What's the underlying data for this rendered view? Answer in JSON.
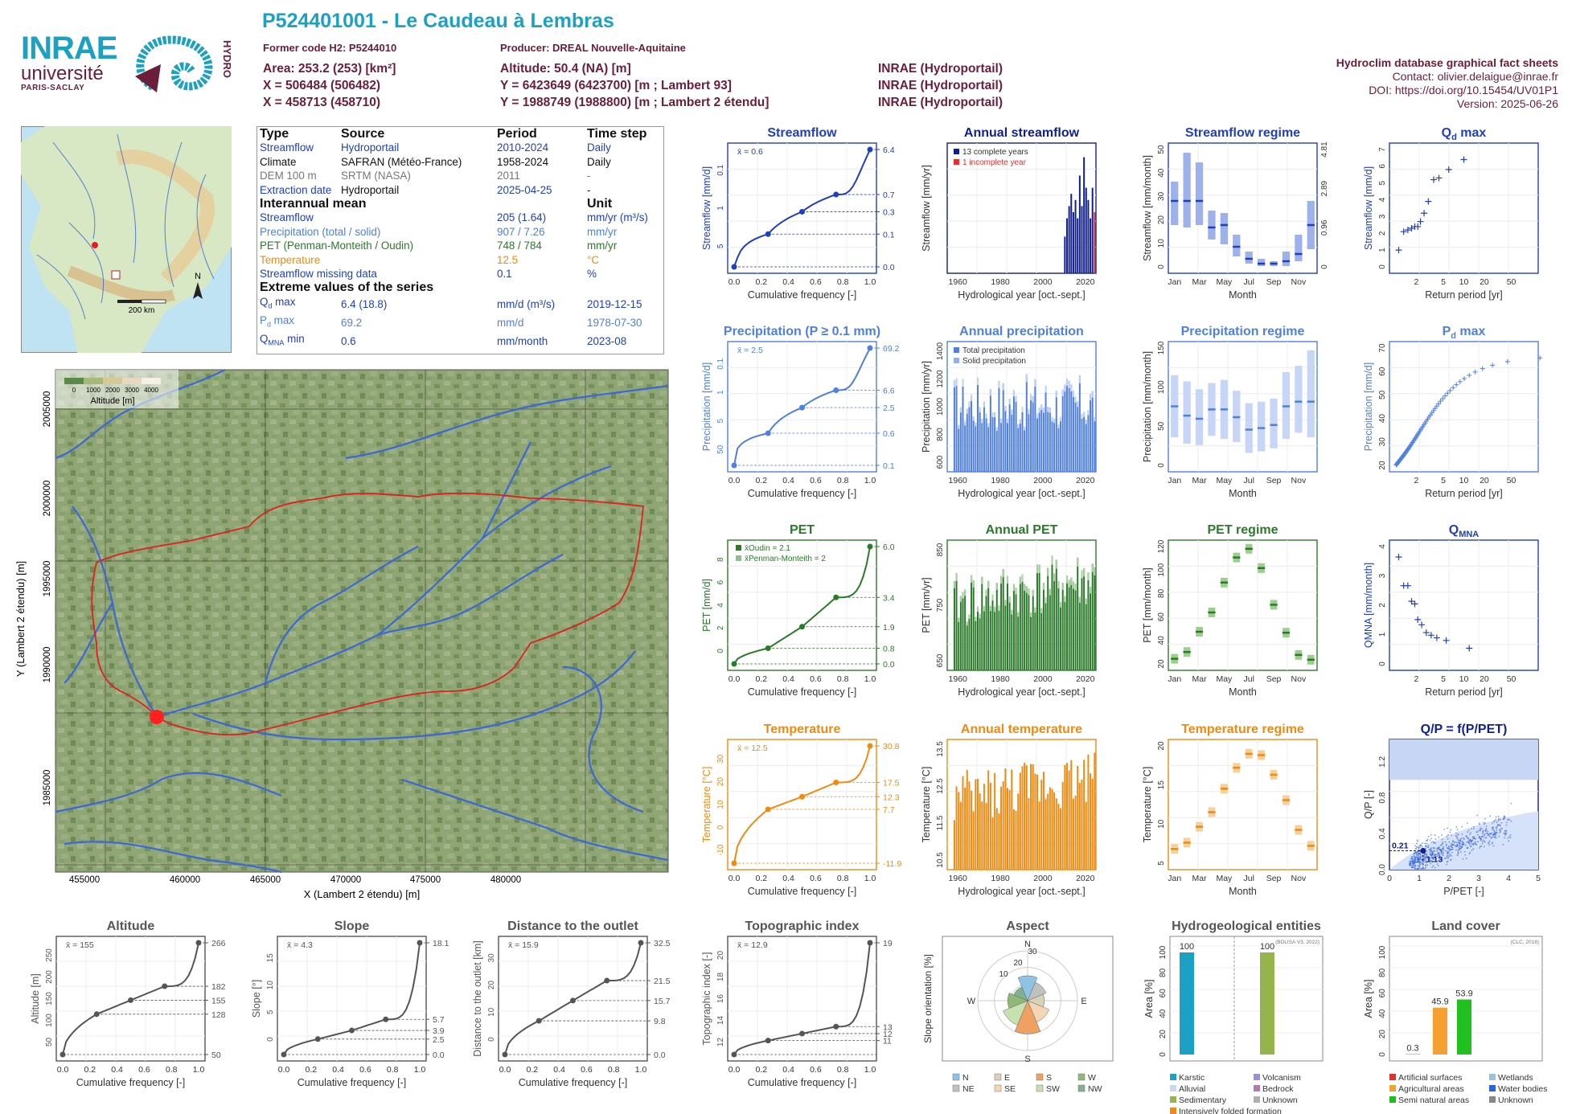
{
  "header": {
    "title": "P524401001 - Le Caudeau à Lembras",
    "former_code": "Former code H2: P5244010",
    "producer": "Producer: DREAL Nouvelle-Aquitaine",
    "area": "Area: 253.2 (253) [km²]",
    "x93": "X = 506484 (506482)",
    "x2e": "X = 458713 (458710)",
    "altitude": "Altitude: 50.4 (NA) [m]",
    "y93": "Y = 6423649 (6423700) [m ; Lambert 93]",
    "y2e": "Y = 1988749 (1988800) [m ; Lambert 2 étendu]",
    "src1": "INRAE (Hydroportail)",
    "src2": "INRAE (Hydroportail)",
    "src3": "INRAE (Hydroportail)",
    "db_title": "Hydroclim database graphical fact sheets",
    "contact": "Contact: olivier.delaigue@inrae.fr",
    "doi": "DOI: https://doi.org/10.15454/UV01P1",
    "version": "Version: 2025-06-26"
  },
  "logos": {
    "inrae": "INRAE",
    "universite": "université",
    "paris_saclay": "PARIS-SACLAY",
    "hydro": "HYDRO"
  },
  "map_inset": {
    "north": "N",
    "scale": "200 km"
  },
  "info_table": {
    "headers": [
      "Type",
      "Source",
      "Period",
      "Time step"
    ],
    "rows": [
      {
        "type": "Streamflow",
        "source": "Hydroportail",
        "period": "2010-2024",
        "step": "Daily",
        "color": "#1f3fbf"
      },
      {
        "type": "Climate",
        "source": "SAFRAN (Météo-France)",
        "period": "1958-2024",
        "step": "Daily",
        "color": "#111111"
      },
      {
        "type": "DEM 100 m",
        "source": "SRTM (NASA)",
        "period": "2011",
        "step": "-",
        "color": "#777777"
      },
      {
        "type": "Extraction date",
        "source": "Hydroportail",
        "period": "2025-04-25",
        "step": "-",
        "color": "#1f3fbf"
      }
    ],
    "mean_title": "Interannual mean",
    "unit_title": "Unit",
    "means": [
      {
        "label": "Streamflow",
        "value": "205 (1.64)",
        "unit": "mm/yr (m³/s)",
        "color": "#1f3fbf"
      },
      {
        "label": "Precipitation (total / solid)",
        "value": "907 / 7.26",
        "unit": "mm/yr",
        "color": "#4f7fe0"
      },
      {
        "label": "PET (Penman-Monteith / Oudin)",
        "value": "748 / 784",
        "unit": "mm/yr",
        "color": "#2a7a2a"
      },
      {
        "label": "Temperature",
        "value": "12.5",
        "unit": "°C",
        "color": "#f08a10"
      },
      {
        "label": "Streamflow missing data",
        "value": "0.1",
        "unit": "%",
        "color": "#1f3fbf"
      }
    ],
    "extreme_title": "Extreme values of the series",
    "extremes": [
      {
        "label": "Q",
        "sub": "d",
        "suffix": " max",
        "value": "6.4 (18.8)",
        "unit": "mm/d (m³/s)",
        "date": "2019-12-15",
        "color": "#1f3fbf"
      },
      {
        "label": "P",
        "sub": "d",
        "suffix": " max",
        "value": "69.2",
        "unit": "mm/d",
        "date": "1978-07-30",
        "color": "#4f7fe0"
      },
      {
        "label": "Q",
        "sub": "MNA",
        "suffix": " min",
        "value": "0.6",
        "unit": "mm/month",
        "date": "2023-08",
        "color": "#1f3fbf"
      }
    ]
  },
  "main_map": {
    "legend_title": "Altitude [m]",
    "legend_ticks": [
      "0",
      "1000",
      "2000",
      "3000",
      "4000"
    ],
    "xlabel": "X (Lambert 2 étendu) [m]",
    "ylabel": "Y (Lambert 2 étendu) [m]",
    "xticks": [
      "455000",
      "460000",
      "465000",
      "470000",
      "475000",
      "480000"
    ],
    "yticks": [
      "2005000",
      "2000000",
      "1995000",
      "1990000",
      "1985000"
    ]
  },
  "colors": {
    "streamflow": "#1f3fbf",
    "precip": "#4f7fe0",
    "pet": "#2a7a2a",
    "temp": "#f08a10",
    "topo": "#555555",
    "title_dark": "#0f1f8f"
  },
  "chart_data": [
    {
      "id": "streamflow_cdf",
      "type": "line",
      "title": "Streamflow",
      "xlabel": "Cumulative frequency [-]",
      "ylabel": "Streamflow [mm/d]",
      "mean": "x̄ = 0.6",
      "x": [
        0,
        0.25,
        0.5,
        0.75,
        1
      ],
      "y": [
        0.0,
        0.1,
        0.3,
        0.7,
        6.4
      ],
      "right_ticks": [
        "6.4",
        "0.7",
        "0.3",
        "0.1",
        "0.0"
      ],
      "left_ticks": [
        "5",
        "1",
        "0.1"
      ]
    },
    {
      "id": "annual_streamflow",
      "type": "bar",
      "title": "Annual streamflow",
      "xlabel": "Hydrological year [oct.-sept.]",
      "ylabel": "Streamflow [mm/yr]",
      "legend": [
        "13 complete years",
        "1 incomplete year"
      ],
      "xticks": [
        "1960",
        "1980",
        "2000",
        "2020"
      ],
      "x": [
        2010,
        2011,
        2012,
        2013,
        2014,
        2015,
        2016,
        2017,
        2018,
        2019,
        2020,
        2021,
        2022,
        2023,
        2024
      ],
      "y": [
        0.3,
        0.45,
        0.55,
        0.65,
        0.5,
        0.6,
        0.45,
        0.8,
        0.55,
        0.95,
        0.7,
        0.6,
        0.45,
        0.7,
        0.5
      ]
    },
    {
      "id": "streamflow_regime",
      "type": "bar",
      "title": "Streamflow regime",
      "xlabel": "Month",
      "ylabel": "Streamflow [mm/month]",
      "categories": [
        "Jan",
        "Feb",
        "Mar",
        "Apr",
        "May",
        "Jun",
        "Jul",
        "Aug",
        "Sep",
        "Oct",
        "Nov",
        "Dec"
      ],
      "xticks": [
        "Jan",
        "Mar",
        "May",
        "Jul",
        "Sep",
        "Nov"
      ],
      "median": [
        28,
        28,
        28,
        17,
        18,
        9,
        4,
        2,
        2,
        3,
        6,
        18
      ],
      "q10": [
        18,
        17,
        18,
        12,
        10,
        5,
        2,
        1,
        1,
        1,
        3,
        8
      ],
      "q90": [
        36,
        48,
        44,
        24,
        23,
        14,
        7,
        4,
        3,
        7,
        14,
        28
      ],
      "left_ticks": [
        "0",
        "10",
        "20",
        "30",
        "40",
        "50"
      ],
      "right_ticks": [
        "0",
        "0.96",
        "2.89",
        "4.81"
      ]
    },
    {
      "id": "qd_max",
      "type": "scatter",
      "title": "Qd max",
      "xlabel": "Return period [yr]",
      "ylabel": "Streamflow [mm/d]",
      "x": [
        1.1,
        1.3,
        1.5,
        1.7,
        1.9,
        2.1,
        2.3,
        2.6,
        3.0,
        3.6,
        4.3,
        6,
        10
      ],
      "y": [
        1.0,
        2.1,
        2.2,
        2.3,
        2.4,
        2.4,
        2.7,
        3.2,
        3.9,
        5.2,
        5.3,
        5.8,
        6.4
      ],
      "xticks": [
        "2",
        "5",
        "10",
        "20",
        "50"
      ],
      "yticks": [
        "0",
        "1",
        "2",
        "3",
        "4",
        "5",
        "6",
        "7"
      ]
    },
    {
      "id": "precip_cdf",
      "type": "line",
      "title": "Precipitation (P ≥ 0.1 mm)",
      "xlabel": "Cumulative frequency [-]",
      "ylabel": "Precipitation [mm/d]",
      "mean": "x̄ = 2.5",
      "x": [
        0,
        0.25,
        0.5,
        0.75,
        1
      ],
      "y": [
        0.1,
        0.6,
        2.5,
        6.6,
        69.2
      ],
      "right_ticks": [
        "69.2",
        "6.6",
        "2.5",
        "0.6",
        "0.1"
      ],
      "left_ticks": [
        "50",
        "5",
        "1",
        "0.1"
      ]
    },
    {
      "id": "annual_precip",
      "type": "bar",
      "title": "Annual precipitation",
      "xlabel": "Hydrological year [oct.-sept.]",
      "ylabel": "Precipitation [mm/yr]",
      "legend": [
        "Total precipitation",
        "Solid precipitation"
      ],
      "xticks": [
        "1960",
        "1980",
        "2000",
        "2020"
      ],
      "yticks": [
        "600",
        "800",
        "1000",
        "1200",
        "1400"
      ],
      "range": [
        1958,
        2024
      ]
    },
    {
      "id": "precip_regime",
      "type": "bar",
      "title": "Precipitation regime",
      "xlabel": "Month",
      "ylabel": "Precipitation [mm/month]",
      "categories": [
        "Jan",
        "Feb",
        "Mar",
        "Apr",
        "May",
        "Jun",
        "Jul",
        "Aug",
        "Sep",
        "Oct",
        "Nov",
        "Dec"
      ],
      "xticks": [
        "Jan",
        "Mar",
        "May",
        "Jul",
        "Sep",
        "Nov"
      ],
      "median": [
        78,
        66,
        62,
        74,
        74,
        64,
        48,
        50,
        54,
        78,
        84,
        84
      ],
      "q10": [
        38,
        30,
        28,
        40,
        36,
        32,
        18,
        20,
        24,
        36,
        44,
        38
      ],
      "q90": [
        118,
        110,
        100,
        108,
        112,
        98,
        82,
        84,
        88,
        122,
        130,
        150
      ],
      "yticks": [
        "0",
        "50",
        "100",
        "150"
      ]
    },
    {
      "id": "pd_max",
      "type": "scatter",
      "title": "Pd max",
      "xlabel": "Return period [yr]",
      "ylabel": "Precipitation [mm/d]",
      "xticks": [
        "2",
        "5",
        "10",
        "20",
        "50"
      ],
      "yticks": [
        "20",
        "30",
        "40",
        "50",
        "60",
        "70"
      ],
      "ymin": 20,
      "ymax": 69,
      "n": 66
    },
    {
      "id": "pet_cdf",
      "type": "line",
      "title": "PET",
      "xlabel": "Cumulative frequency [-]",
      "ylabel": "PET [mm/d]",
      "legend": [
        "x̄Oudin = 2.1",
        "x̄Penman-Monteith = 2"
      ],
      "x": [
        0,
        0.25,
        0.5,
        0.75,
        1
      ],
      "y": [
        0.0,
        0.8,
        1.9,
        3.4,
        6.0
      ],
      "right_ticks": [
        "6.0",
        "3.4",
        "1.9",
        "0.8",
        "0.0"
      ],
      "left_ticks": [
        "0",
        "2",
        "4",
        "6",
        "8"
      ]
    },
    {
      "id": "annual_pet",
      "type": "bar",
      "title": "Annual PET",
      "xlabel": "Hydrological year [oct.-sept.]",
      "ylabel": "PET [mm/yr]",
      "xticks": [
        "1960",
        "1980",
        "2000",
        "2020"
      ],
      "yticks": [
        "650",
        "750",
        "850"
      ],
      "range": [
        1958,
        2024
      ]
    },
    {
      "id": "pet_regime",
      "type": "bar",
      "title": "PET regime",
      "xlabel": "Month",
      "ylabel": "PET [mm/month]",
      "categories": [
        "Jan",
        "Feb",
        "Mar",
        "Apr",
        "May",
        "Jun",
        "Jul",
        "Aug",
        "Sep",
        "Oct",
        "Nov",
        "Dec"
      ],
      "xticks": [
        "Jan",
        "Mar",
        "May",
        "Jul",
        "Sep",
        "Nov"
      ],
      "median": [
        17,
        24,
        45,
        65,
        96,
        122,
        131,
        111,
        73,
        44,
        21,
        16
      ],
      "yticks": [
        "20",
        "40",
        "60",
        "80",
        "100",
        "120"
      ]
    },
    {
      "id": "qmna",
      "type": "scatter",
      "title": "QMNA",
      "xlabel": "Return period [yr]",
      "ylabel": "QMNA [mm/month]",
      "x": [
        1.1,
        1.3,
        1.5,
        1.7,
        1.9,
        2.1,
        2.4,
        2.8,
        3.3,
        4,
        5.5,
        12
      ],
      "y": [
        4.1,
        3.0,
        3.0,
        2.4,
        2.3,
        1.7,
        1.5,
        1.2,
        1.1,
        1.0,
        0.9,
        0.6
      ],
      "xticks": [
        "2",
        "5",
        "10",
        "20",
        "50"
      ],
      "yticks": [
        "0",
        "1",
        "2",
        "3",
        "4"
      ]
    },
    {
      "id": "temp_cdf",
      "type": "line",
      "title": "Temperature",
      "xlabel": "Cumulative frequency [-]",
      "ylabel": "Temperature [°C]",
      "mean": "x̄ = 12.5",
      "x": [
        0,
        0.25,
        0.5,
        0.75,
        1
      ],
      "y": [
        -11.9,
        7.7,
        12.3,
        17.5,
        30.8
      ],
      "right_ticks": [
        "30.8",
        "17.5",
        "12.3",
        "7.7",
        "-11.9"
      ],
      "left_ticks": [
        "-10",
        "0",
        "10",
        "20",
        "30"
      ]
    },
    {
      "id": "annual_temp",
      "type": "bar",
      "title": "Annual temperature",
      "xlabel": "Hydrological year [oct.-sept.]",
      "ylabel": "Temperature [°C]",
      "xticks": [
        "1960",
        "1980",
        "2000",
        "2020"
      ],
      "yticks": [
        "10.5",
        "11.5",
        "12.5",
        "13.5"
      ],
      "range": [
        1958,
        2024
      ]
    },
    {
      "id": "temp_regime",
      "type": "bar",
      "title": "Temperature regime",
      "xlabel": "Month",
      "ylabel": "Temperature [°C]",
      "categories": [
        "Jan",
        "Feb",
        "Mar",
        "Apr",
        "May",
        "Jun",
        "Jul",
        "Aug",
        "Sep",
        "Oct",
        "Nov",
        "Dec"
      ],
      "xticks": [
        "Jan",
        "Mar",
        "May",
        "Jul",
        "Sep",
        "Nov"
      ],
      "median": [
        5.5,
        6.5,
        9,
        11.3,
        15,
        18.3,
        20.5,
        20.3,
        17.2,
        13.2,
        8.5,
        6
      ],
      "yticks": [
        "5",
        "10",
        "15",
        "20"
      ]
    },
    {
      "id": "qp_ppet",
      "type": "scatter",
      "title": "Q/P = f(P/PET)",
      "xlabel": "P/PET [-]",
      "ylabel": "Q/P [-]",
      "annotations": [
        "0.21",
        "1.13"
      ],
      "xticks": [
        "0",
        "1",
        "2",
        "3",
        "4",
        "5"
      ],
      "yticks": [
        "0.0",
        "0.4",
        "0.8",
        "1.2"
      ]
    },
    {
      "id": "altitude_cdf",
      "type": "line",
      "title": "Altitude",
      "xlabel": "Cumulative frequency [-]",
      "ylabel": "Altitude [m]",
      "mean": "x̄ = 155",
      "x": [
        0,
        0.25,
        0.5,
        0.75,
        1
      ],
      "y": [
        50,
        128,
        155,
        182,
        266
      ],
      "right_ticks": [
        "266",
        "182",
        "155",
        "128",
        "50"
      ],
      "left_ticks": [
        "50",
        "100",
        "150",
        "200",
        "250"
      ]
    },
    {
      "id": "slope_cdf",
      "type": "line",
      "title": "Slope",
      "xlabel": "Cumulative frequency [-]",
      "ylabel": "Slope [°]",
      "mean": "x̄ = 4.3",
      "x": [
        0,
        0.25,
        0.5,
        0.75,
        1
      ],
      "y": [
        0.0,
        2.5,
        3.9,
        5.7,
        18.1
      ],
      "right_ticks": [
        "18.1",
        "5.7",
        "3.9",
        "2.5",
        "0.0"
      ],
      "left_ticks": [
        "0",
        "5",
        "10",
        "15"
      ]
    },
    {
      "id": "distance_cdf",
      "type": "line",
      "title": "Distance to the outlet",
      "xlabel": "Cumulative frequency [-]",
      "ylabel": "Distance to the outlet [km]",
      "mean": "x̄ = 15.9",
      "x": [
        0,
        0.25,
        0.5,
        0.75,
        1
      ],
      "y": [
        0.0,
        9.8,
        15.7,
        21.5,
        32.5
      ],
      "right_ticks": [
        "32.5",
        "21.5",
        "15.7",
        "9.8",
        "0.0"
      ],
      "left_ticks": [
        "0",
        "10",
        "20",
        "30"
      ]
    },
    {
      "id": "topo_cdf",
      "type": "line",
      "title": "Topographic index",
      "xlabel": "Cumulative frequency [-]",
      "ylabel": "Topographic index [-]",
      "mean": "x̄ = 12.9",
      "x": [
        0,
        0.25,
        0.5,
        0.75,
        1
      ],
      "y": [
        11,
        12,
        12.5,
        13,
        19
      ],
      "right_ticks": [
        "19",
        "13",
        "12",
        "11"
      ],
      "left_ticks": [
        "12",
        "14",
        "16",
        "18",
        "20"
      ]
    },
    {
      "id": "aspect",
      "type": "pie",
      "title": "Aspect",
      "ylabel": "Slope orientation [%]",
      "directions": [
        "N",
        "NE",
        "E",
        "SE",
        "S",
        "SW",
        "W",
        "NW"
      ],
      "values": [
        15,
        12,
        10,
        14,
        20,
        16,
        12,
        9
      ],
      "colors": [
        "#8fc3e6",
        "#c0c0c0",
        "#d9d2b8",
        "#f4d6b7",
        "#f0a060",
        "#c8e0b0",
        "#90b878",
        "#80b090"
      ],
      "rings": [
        "10",
        "20",
        "30"
      ],
      "compass": [
        "N",
        "E",
        "S",
        "W"
      ]
    },
    {
      "id": "hydrogeology",
      "type": "bar",
      "title": "Hydrogeological entities",
      "ylabel": "Area [%]",
      "note": "(BDLISA V3, 2022)",
      "values": [
        100,
        100
      ],
      "bar_labels": [
        "100",
        "100"
      ],
      "bar_colors": [
        "#1aa1c3",
        "#95b44c"
      ],
      "legend": [
        {
          "label": "Karstic",
          "color": "#1aa1c3"
        },
        {
          "label": "Volcanism",
          "color": "#9b8fd6"
        },
        {
          "label": "Alluvial",
          "color": "#c8d8f0"
        },
        {
          "label": "Bedrock",
          "color": "#b07ab0"
        },
        {
          "label": "Sedimentary",
          "color": "#95b44c"
        },
        {
          "label": "Unknown",
          "color": "#b0b0b0"
        },
        {
          "label": "Intensively folded formation",
          "color": "#f08a10"
        }
      ],
      "yticks": [
        "0",
        "20",
        "40",
        "60",
        "80",
        "100"
      ]
    },
    {
      "id": "land_cover",
      "type": "bar",
      "title": "Land cover",
      "ylabel": "Area [%]",
      "note": "(CLC, 2018)",
      "values": [
        0.3,
        45.9,
        53.9
      ],
      "bar_labels": [
        "0.3",
        "45.9",
        "53.9"
      ],
      "bar_colors": [
        "#e03030",
        "#f5a030",
        "#20c020"
      ],
      "legend": [
        {
          "label": "Artificial surfaces",
          "color": "#e03030"
        },
        {
          "label": "Wetlands",
          "color": "#a0c0e0"
        },
        {
          "label": "Agricultural areas",
          "color": "#f5a030"
        },
        {
          "label": "Water bodies",
          "color": "#3060e0"
        },
        {
          "label": "Semi natural areas",
          "color": "#20c020"
        },
        {
          "label": "Unknown",
          "color": "#888888"
        }
      ],
      "yticks": [
        "0",
        "20",
        "40",
        "60",
        "80",
        "100"
      ]
    }
  ]
}
